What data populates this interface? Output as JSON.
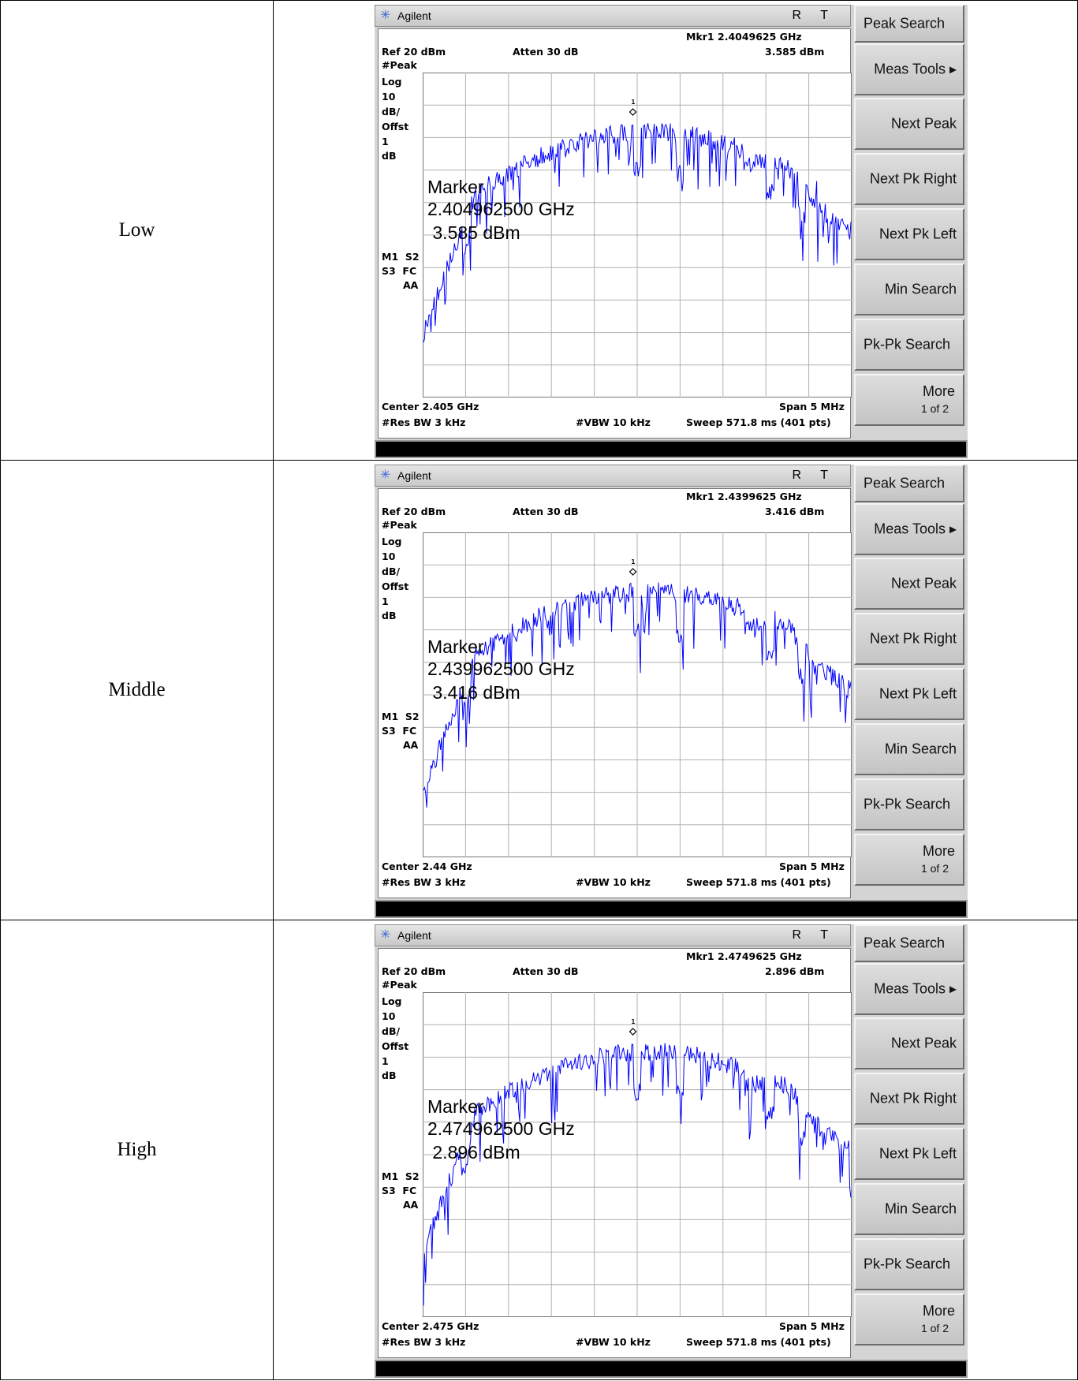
{
  "rows": [
    {
      "label": "Low",
      "analyzer": {
        "brand": "Agilent",
        "status_rt": "R T",
        "mkr_label": "Mkr1",
        "mkr_freq": "2.4049625 GHz",
        "mkr_level": "3.585 dBm",
        "ref": "Ref 20 dBm",
        "atten": "Atten 30 dB",
        "left_annot": [
          "#Peak",
          "Log",
          "10",
          "dB/",
          "Offst",
          "1",
          "dB"
        ],
        "trig_annot": [
          "M1  S2",
          "S3  FC",
          "AA"
        ],
        "center": "Center 2.405 GHz",
        "span": "Span 5 MHz",
        "res_bw": "#Res BW 3 kHz",
        "vbw": "#VBW 10 kHz",
        "sweep": "Sweep 571.8 ms (401 pts)",
        "marker_title": "Marker",
        "marker_freq": "2.404962500 GHz",
        "marker_level": " 3.585 dBm",
        "marker_number": "1",
        "trace_color": "#0000ff"
      }
    },
    {
      "label": "Middle",
      "analyzer": {
        "brand": "Agilent",
        "status_rt": "R T",
        "mkr_label": "Mkr1",
        "mkr_freq": "2.4399625 GHz",
        "mkr_level": "3.416 dBm",
        "ref": "Ref 20 dBm",
        "atten": "Atten 30 dB",
        "left_annot": [
          "#Peak",
          "Log",
          "10",
          "dB/",
          "Offst",
          "1",
          "dB"
        ],
        "trig_annot": [
          "M1  S2",
          "S3  FC",
          "AA"
        ],
        "center": "Center 2.44 GHz",
        "span": "Span 5 MHz",
        "res_bw": "#Res BW 3 kHz",
        "vbw": "#VBW 10 kHz",
        "sweep": "Sweep 571.8 ms (401 pts)",
        "marker_title": "Marker",
        "marker_freq": "2.439962500 GHz",
        "marker_level": " 3.416 dBm",
        "marker_number": "1",
        "trace_color": "#0000ff"
      }
    },
    {
      "label": "High",
      "analyzer": {
        "brand": "Agilent",
        "status_rt": "R T",
        "mkr_label": "Mkr1",
        "mkr_freq": "2.4749625 GHz",
        "mkr_level": "2.896 dBm",
        "ref": "Ref 20 dBm",
        "atten": "Atten 30 dB",
        "left_annot": [
          "#Peak",
          "Log",
          "10",
          "dB/",
          "Offst",
          "1",
          "dB"
        ],
        "trig_annot": [
          "M1  S2",
          "S3  FC",
          "AA"
        ],
        "center": "Center 2.475 GHz",
        "span": "Span 5 MHz",
        "res_bw": "#Res BW 3 kHz",
        "vbw": "#VBW 10 kHz",
        "sweep": "Sweep 571.8 ms (401 pts)",
        "marker_title": "Marker",
        "marker_freq": "2.474962500 GHz",
        "marker_level": " 2.896 dBm",
        "marker_number": "1",
        "trace_color": "#0000ff"
      }
    }
  ],
  "softkeys": [
    "Peak Search",
    "Meas Tools ▸",
    "Next Peak",
    "Next Pk Right",
    "Next Pk Left",
    "Min Search",
    "Pk-Pk Search"
  ],
  "softkey_more": {
    "label": "More",
    "page": "1 of 2"
  },
  "grid": {
    "h_divisions": 10,
    "v_divisions": 10
  }
}
